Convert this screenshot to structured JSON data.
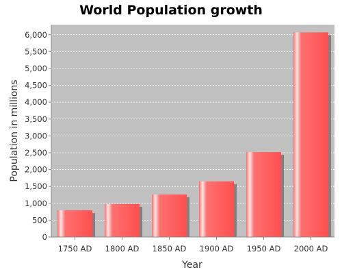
{
  "chart_data": {
    "type": "bar",
    "title": "World Population growth",
    "xlabel": "Year",
    "ylabel": "Population in millions",
    "categories": [
      "1750 AD",
      "1800 AD",
      "1850 AD",
      "1900 AD",
      "1950 AD",
      "2000 AD"
    ],
    "values": [
      791,
      978,
      1262,
      1650,
      2518,
      6070
    ],
    "ylim": [
      0,
      6300
    ],
    "yticks": [
      0,
      500,
      1000,
      1500,
      2000,
      2500,
      3000,
      3500,
      4000,
      4500,
      5000,
      5500,
      6000
    ],
    "ytick_labels": [
      "0",
      "500",
      "1,000",
      "1,500",
      "2,000",
      "2,500",
      "3,000",
      "3,500",
      "4,000",
      "4,500",
      "5,000",
      "5,500",
      "6,000"
    ],
    "grid": true,
    "legend": "none",
    "colors": {
      "bar": "#ff5a5a",
      "bar_highlight": "#ffe6e6",
      "bar_shadow": "#808080",
      "plot_background": "#c0c0c0",
      "gridline": "#ffffff"
    }
  }
}
